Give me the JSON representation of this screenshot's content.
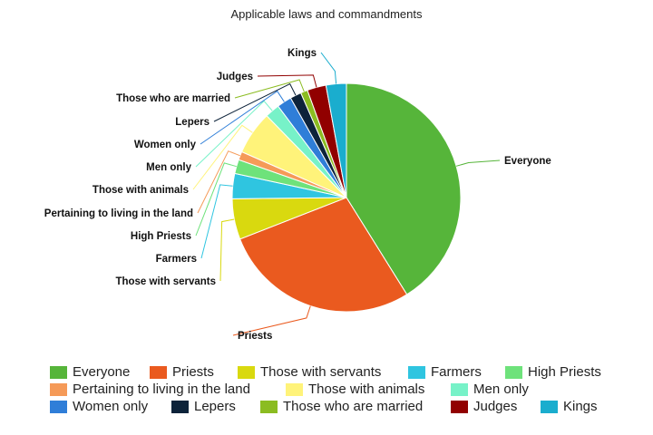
{
  "chart_data": {
    "type": "pie",
    "title": "Applicable laws and commandments",
    "legend_position": "bottom",
    "slices": [
      {
        "label": "Everyone",
        "value": 41.5,
        "color": "#56b53a"
      },
      {
        "label": "Priests",
        "value": 28.2,
        "color": "#ea5a1f"
      },
      {
        "label": "Those with servants",
        "value": 5.8,
        "color": "#d9d90f"
      },
      {
        "label": "Farmers",
        "value": 3.6,
        "color": "#2fc5e0"
      },
      {
        "label": "High Priests",
        "value": 2.0,
        "color": "#6ee27b"
      },
      {
        "label": "Pertaining to living in the land",
        "value": 1.2,
        "color": "#f59a58"
      },
      {
        "label": "Those with animals",
        "value": 6.2,
        "color": "#fff37a"
      },
      {
        "label": "Men only",
        "value": 2.1,
        "color": "#77f2c8"
      },
      {
        "label": "Women only",
        "value": 2.1,
        "color": "#2f7ed8"
      },
      {
        "label": "Lepers",
        "value": 1.6,
        "color": "#0d233a"
      },
      {
        "label": "Those who are married",
        "value": 1.0,
        "color": "#8bbc21"
      },
      {
        "label": "Judges",
        "value": 2.7,
        "color": "#910000"
      },
      {
        "label": "Kings",
        "value": 2.9,
        "color": "#1aadce"
      }
    ]
  }
}
